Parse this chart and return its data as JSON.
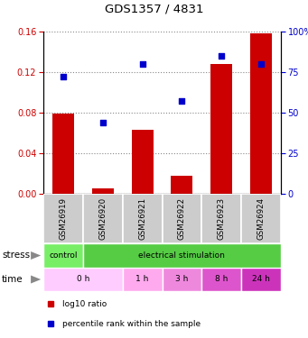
{
  "title": "GDS1357 / 4831",
  "samples": [
    "GSM26919",
    "GSM26920",
    "GSM26921",
    "GSM26922",
    "GSM26923",
    "GSM26924"
  ],
  "bar_values": [
    0.079,
    0.005,
    0.063,
    0.018,
    0.128,
    0.158
  ],
  "dot_values": [
    72,
    44,
    80,
    57,
    85,
    80
  ],
  "ylim_left": [
    0,
    0.16
  ],
  "ylim_right": [
    0,
    100
  ],
  "yticks_left": [
    0,
    0.04,
    0.08,
    0.12,
    0.16
  ],
  "yticks_right": [
    0,
    25,
    50,
    75,
    100
  ],
  "bar_color": "#cc0000",
  "dot_color": "#0000cc",
  "sample_box_color": "#cccccc",
  "label_color_left": "#cc0000",
  "label_color_right": "#0000cc",
  "stress_control_color": "#66dd55",
  "stress_elec_color": "#55cc44",
  "time_colors": [
    "#ffccff",
    "#ffccff",
    "#ffaaee",
    "#ee88dd",
    "#dd55cc",
    "#cc33bb"
  ],
  "time_segments": [
    [
      0,
      2,
      "0 h"
    ],
    [
      2,
      3,
      "1 h"
    ],
    [
      3,
      4,
      "3 h"
    ],
    [
      4,
      5,
      "8 h"
    ],
    [
      5,
      6,
      "24 h"
    ]
  ],
  "legend_bar_label": "log10 ratio",
  "legend_dot_label": "percentile rank within the sample"
}
